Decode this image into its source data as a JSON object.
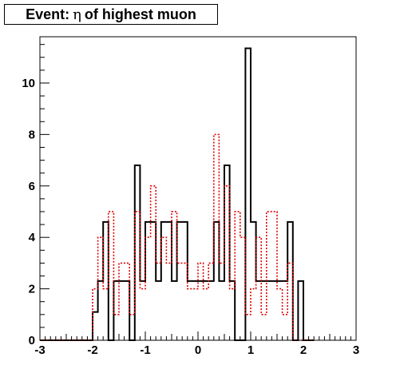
{
  "title": {
    "prefix": "Event:",
    "symbol": "η",
    "suffix": "of highest muon"
  },
  "chart_data": {
    "type": "histogram",
    "title": "Event: η of highest muon",
    "xlabel": "",
    "ylabel": "",
    "xlim": [
      -3,
      3
    ],
    "ylim": [
      0,
      11.8
    ],
    "x_ticks": [
      -3,
      -2,
      -1,
      0,
      1,
      2,
      3
    ],
    "y_ticks": [
      0,
      2,
      4,
      6,
      8,
      10
    ],
    "bin_edges": [
      -3.0,
      -2.0,
      -1.9,
      -1.8,
      -1.7,
      -1.6,
      -1.5,
      -1.4,
      -1.3,
      -1.2,
      -1.1,
      -1.0,
      -0.9,
      -0.8,
      -0.7,
      -0.6,
      -0.5,
      -0.4,
      -0.3,
      -0.2,
      -0.1,
      0.0,
      0.1,
      0.2,
      0.3,
      0.4,
      0.5,
      0.6,
      0.7,
      0.8,
      0.9,
      1.0,
      1.1,
      1.2,
      1.3,
      1.4,
      1.5,
      1.6,
      1.7,
      1.8,
      1.9,
      2.0,
      2.1,
      2.2,
      3.0
    ],
    "series": [
      {
        "style": "solid",
        "color": "#000000",
        "values": [
          0,
          1.1,
          2.3,
          4.6,
          0,
          2.3,
          2.3,
          2.3,
          0,
          6.8,
          2.3,
          4.6,
          4.6,
          2.3,
          4.6,
          4.6,
          2.3,
          4.6,
          4.6,
          2.3,
          2.3,
          2.3,
          2.3,
          2.3,
          4.6,
          2.3,
          6.8,
          2.3,
          0,
          0,
          11.35,
          4.6,
          2.3,
          2.3,
          2.3,
          2.3,
          2.3,
          2.3,
          4.6,
          0,
          2.3,
          0,
          0
        ]
      },
      {
        "style": "dotted",
        "color": "#e00000",
        "values": [
          0,
          2,
          4,
          2,
          5,
          1,
          3,
          3,
          1,
          5,
          2,
          4,
          6,
          3,
          4,
          3,
          5,
          3,
          3,
          2,
          2,
          3,
          2,
          3,
          8,
          3,
          6,
          2,
          5,
          4,
          1,
          2,
          4,
          1,
          5,
          5,
          2,
          1,
          3,
          0,
          0,
          0,
          0
        ]
      }
    ]
  }
}
